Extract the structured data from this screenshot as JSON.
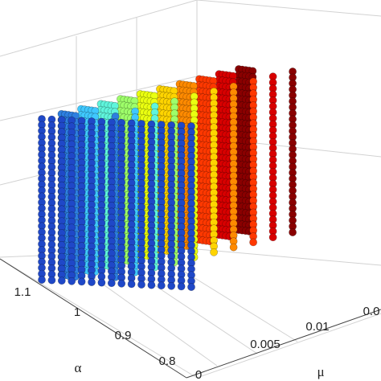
{
  "chart_data": {
    "type": "scatter",
    "subtype": "3d-scatter-planes",
    "title": "",
    "xlabel": "μ",
    "ylabel": "α",
    "zlabel": "",
    "grid": true,
    "x_ticks": [
      "0",
      "0.005",
      "0.01",
      "0.0"
    ],
    "y_ticks": [
      "0.8",
      "0.9",
      "1",
      "1.1"
    ],
    "y_range": [
      0.8,
      1.15
    ],
    "series": [
      {
        "x": 0.0,
        "color": "#1f48c8"
      },
      {
        "x": 0.0017,
        "color": "#2d7fe0"
      },
      {
        "x": 0.0033,
        "color": "#3fc8ff"
      },
      {
        "x": 0.005,
        "color": "#5ff5dc"
      },
      {
        "x": 0.0067,
        "color": "#9eff6a"
      },
      {
        "x": 0.0083,
        "color": "#eaff10"
      },
      {
        "x": 0.01,
        "color": "#ffd400"
      },
      {
        "x": 0.0117,
        "color": "#ff8a00"
      },
      {
        "x": 0.0133,
        "color": "#ff3800"
      },
      {
        "x": 0.015,
        "color": "#d80000"
      },
      {
        "x": 0.0167,
        "color": "#8a0000"
      }
    ]
  }
}
